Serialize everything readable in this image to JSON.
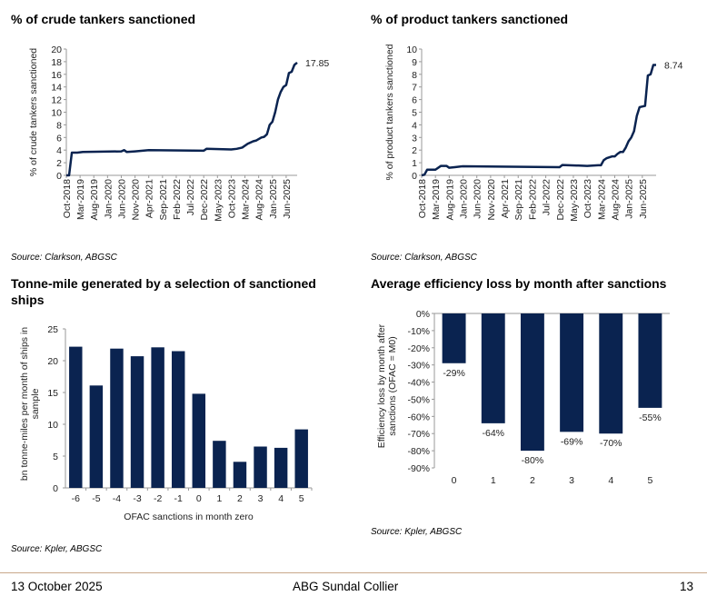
{
  "charts": [
    {
      "title": "% of crude tankers sanctioned",
      "source": "Source: Clarkson, ABGSC"
    },
    {
      "title": "% of product tankers sanctioned",
      "source": "Source: Clarkson, ABGSC"
    },
    {
      "title": "Tonne-mile generated by a selection of sanctioned ships",
      "source": "Source: Kpler, ABGSC"
    },
    {
      "title": "Average efficiency loss by month after sanctions",
      "source": "Source: Kpler, ABGSC"
    }
  ],
  "footer": {
    "date": "13 October 2025",
    "company": "ABG Sundal Collier",
    "page": "13"
  },
  "colors": {
    "series": "#0a2350",
    "axis": "#999999"
  },
  "chart_data": [
    {
      "type": "line",
      "ylabel": "% of crude tankers sanctioned",
      "ylim": [
        0,
        20
      ],
      "yticks": [
        0,
        2,
        4,
        6,
        8,
        10,
        12,
        14,
        16,
        18,
        20
      ],
      "xlabels": [
        "Oct-2018",
        "Mar-2019",
        "Aug-2019",
        "Jan-2020",
        "Jun-2020",
        "Nov-2020",
        "Apr-2021",
        "Sep-2021",
        "Feb-2022",
        "Jul-2022",
        "Dec-2022",
        "May-2023",
        "Oct-2023",
        "Mar-2024",
        "Aug-2024",
        "Jan-2025",
        "Jun-2025"
      ],
      "x_unit": "months since Oct-2018",
      "xlim": [
        0,
        84
      ],
      "end_label": "17.85",
      "points": [
        [
          0,
          0
        ],
        [
          1,
          0
        ],
        [
          2,
          3.6
        ],
        [
          4,
          3.6
        ],
        [
          6,
          3.7
        ],
        [
          20,
          3.8
        ],
        [
          21,
          4.0
        ],
        [
          22,
          3.7
        ],
        [
          25,
          3.8
        ],
        [
          30,
          4.0
        ],
        [
          50,
          3.9
        ],
        [
          51,
          4.2
        ],
        [
          60,
          4.1
        ],
        [
          62,
          4.2
        ],
        [
          64,
          4.4
        ],
        [
          66,
          5.0
        ],
        [
          68,
          5.4
        ],
        [
          69,
          5.5
        ],
        [
          71,
          6.0
        ],
        [
          72,
          6.1
        ],
        [
          73,
          6.5
        ],
        [
          74,
          8.0
        ],
        [
          75,
          8.5
        ],
        [
          76,
          10
        ],
        [
          77,
          12
        ],
        [
          78,
          13.2
        ],
        [
          79,
          14
        ],
        [
          80,
          14.3
        ],
        [
          81,
          16.2
        ],
        [
          82,
          16.4
        ],
        [
          83,
          17.5
        ],
        [
          84,
          17.85
        ]
      ]
    },
    {
      "type": "line",
      "ylabel": "% of product tankers sanctioned",
      "ylim": [
        0,
        10
      ],
      "yticks": [
        0,
        1,
        2,
        3,
        4,
        5,
        6,
        7,
        8,
        9,
        10
      ],
      "xlabels": [
        "Oct-2018",
        "Mar-2019",
        "Aug-2019",
        "Jan-2020",
        "Jun-2020",
        "Nov-2020",
        "Apr-2021",
        "Sep-2021",
        "Feb-2022",
        "Jul-2022",
        "Dec-2022",
        "May-2023",
        "Oct-2023",
        "Mar-2024",
        "Aug-2024",
        "Jan-2025",
        "Jun-2025"
      ],
      "x_unit": "months since Oct-2018",
      "xlim": [
        0,
        85
      ],
      "end_label": "8.74",
      "points": [
        [
          0,
          0
        ],
        [
          1,
          0.05
        ],
        [
          2,
          0.45
        ],
        [
          5,
          0.45
        ],
        [
          7,
          0.75
        ],
        [
          9,
          0.75
        ],
        [
          10,
          0.6
        ],
        [
          12,
          0.65
        ],
        [
          15,
          0.72
        ],
        [
          50,
          0.65
        ],
        [
          51,
          0.82
        ],
        [
          60,
          0.75
        ],
        [
          64,
          0.8
        ],
        [
          65,
          0.8
        ],
        [
          66,
          1.2
        ],
        [
          67,
          1.35
        ],
        [
          69,
          1.5
        ],
        [
          70,
          1.5
        ],
        [
          71,
          1.7
        ],
        [
          72,
          1.85
        ],
        [
          73,
          1.85
        ],
        [
          74,
          2.2
        ],
        [
          75,
          2.7
        ],
        [
          76,
          3.0
        ],
        [
          77,
          3.5
        ],
        [
          78,
          4.7
        ],
        [
          79,
          5.4
        ],
        [
          81,
          5.5
        ],
        [
          82,
          7.9
        ],
        [
          83,
          8.0
        ],
        [
          84,
          8.74
        ],
        [
          85,
          8.74
        ]
      ]
    },
    {
      "type": "bar",
      "ylabel": "bn tonne-miles per month of ships in sample",
      "xlabel": "OFAC sanctions in month zero",
      "ylim": [
        0,
        25
      ],
      "yticks": [
        0,
        5,
        10,
        15,
        20,
        25
      ],
      "categories": [
        "-6",
        "-5",
        "-4",
        "-3",
        "-2",
        "-1",
        "0",
        "1",
        "2",
        "3",
        "4",
        "5"
      ],
      "values": [
        22.2,
        16.1,
        21.9,
        20.7,
        22.1,
        21.5,
        14.8,
        7.4,
        4.1,
        6.5,
        6.3,
        9.2
      ]
    },
    {
      "type": "bar",
      "ylabel": "Efficiency loss by month after sanctions (OFAC = M0)",
      "ylim": [
        -90,
        0
      ],
      "yticks": [
        "0%",
        "-10%",
        "-20%",
        "-30%",
        "-40%",
        "-50%",
        "-60%",
        "-70%",
        "-80%",
        "-90%"
      ],
      "categories": [
        "0",
        "1",
        "2",
        "3",
        "4",
        "5"
      ],
      "values": [
        -29,
        -64,
        -80,
        -69,
        -70,
        -55
      ],
      "data_labels": [
        "-29%",
        "-64%",
        "-80%",
        "-69%",
        "-70%",
        "-55%"
      ]
    }
  ]
}
